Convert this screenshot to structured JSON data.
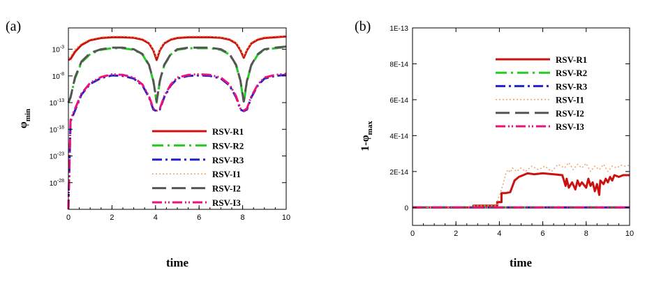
{
  "chart_data": [
    {
      "type": "line",
      "panel_label": "(a)",
      "xlabel": "time",
      "ylabel_main": "φ",
      "ylabel_sub": "min",
      "yscale": "log",
      "xlim": [
        0,
        10
      ],
      "ylim_exp": [
        -33,
        1
      ],
      "xticks": [
        0,
        2,
        4,
        6,
        8,
        10
      ],
      "xtick_labels": [
        "0",
        "2",
        "4",
        "6",
        "8",
        "10"
      ],
      "yticks_exp": [
        -28,
        -23,
        -18,
        -13,
        -8,
        -3
      ],
      "ytick_base": "10",
      "ytick_exps": [
        "-28",
        "-23",
        "-18",
        "-13",
        "-8",
        "-3"
      ],
      "legend": [
        "RSV-R1",
        "RSV-R2",
        "RSV-R3",
        "RSV-I1",
        "RSV-I2",
        "RSV-I3"
      ],
      "series": [
        {
          "name": "RSV-R1",
          "color": "#cc1111",
          "dash": "",
          "width": 3,
          "x": [
            0,
            0.1,
            0.3,
            0.6,
            1.0,
            1.5,
            2.0,
            2.5,
            3.0,
            3.4,
            3.7,
            3.9,
            4.05,
            4.2,
            4.4,
            4.7,
            5.0,
            5.5,
            6.0,
            6.5,
            7.0,
            7.4,
            7.7,
            7.9,
            8.05,
            8.2,
            8.4,
            8.7,
            9.0,
            9.5,
            10.0
          ],
          "y": [
            -5.0,
            -4.8,
            -3.5,
            -2.2,
            -1.3,
            -0.9,
            -0.75,
            -0.75,
            -0.85,
            -1.2,
            -1.9,
            -3.2,
            -5.0,
            -3.2,
            -1.9,
            -1.2,
            -0.9,
            -0.75,
            -0.75,
            -0.75,
            -0.85,
            -1.2,
            -1.9,
            -3.2,
            -4.6,
            -3.2,
            -1.9,
            -1.2,
            -0.9,
            -0.75,
            -0.6
          ]
        },
        {
          "name": "RSV-R2",
          "color": "#22cc22",
          "dash": "16,6,3,6",
          "width": 3,
          "x": [
            0,
            0.1,
            0.3,
            0.6,
            1.0,
            1.5,
            2.0,
            2.5,
            3.0,
            3.4,
            3.7,
            3.9,
            4.05,
            4.2,
            4.4,
            4.7,
            5.0,
            5.5,
            6.0,
            6.5,
            7.0,
            7.4,
            7.7,
            7.9,
            8.05,
            8.2,
            8.4,
            8.7,
            9.0,
            9.5,
            10.0
          ],
          "y": [
            -13,
            -12,
            -8.5,
            -5.5,
            -3.9,
            -3.1,
            -2.8,
            -2.8,
            -3.1,
            -4.0,
            -6.0,
            -9.0,
            -13.0,
            -9.0,
            -6.0,
            -4.0,
            -3.1,
            -2.8,
            -2.8,
            -2.8,
            -3.1,
            -4.0,
            -6.0,
            -9.0,
            -13.0,
            -9.0,
            -6.0,
            -4.0,
            -3.1,
            -2.8,
            -2.6
          ]
        },
        {
          "name": "RSV-R3",
          "color": "#2222cc",
          "dash": "14,5,3,5",
          "width": 3,
          "x": [
            0,
            0.1,
            0.3,
            0.6,
            1.0,
            1.5,
            2.0,
            2.5,
            3.0,
            3.4,
            3.7,
            3.9,
            4.05,
            4.2,
            4.4,
            4.7,
            5.0,
            5.5,
            6.0,
            6.5,
            7.0,
            7.4,
            7.7,
            7.9,
            8.05,
            8.2,
            8.4,
            8.7,
            9.0,
            9.5,
            10.0
          ],
          "y": [
            -33,
            -16.5,
            -14.5,
            -11.5,
            -9.5,
            -8.4,
            -7.9,
            -8.0,
            -8.5,
            -9.8,
            -12.0,
            -14.3,
            -14.6,
            -14.3,
            -12.0,
            -9.8,
            -8.5,
            -8.0,
            -7.9,
            -8.0,
            -8.5,
            -9.8,
            -12.0,
            -14.3,
            -14.6,
            -14.3,
            -12.0,
            -9.8,
            -8.5,
            -8.0,
            -7.8
          ]
        },
        {
          "name": "RSV-I1",
          "color": "#f0a060",
          "dash": "2,3",
          "width": 1.5,
          "x": [
            0,
            0.1,
            0.3,
            0.6,
            1.0,
            1.5,
            2.0,
            2.5,
            3.0,
            3.4,
            3.7,
            3.9,
            4.05,
            4.2,
            4.4,
            4.7,
            5.0,
            5.5,
            6.0,
            6.5,
            7.0,
            7.4,
            7.7,
            7.9,
            8.05,
            8.2,
            8.4,
            8.7,
            9.0,
            9.5,
            10.0
          ],
          "y": [
            -4.6,
            -4.3,
            -3.0,
            -1.9,
            -1.1,
            -0.7,
            -0.55,
            -0.55,
            -0.7,
            -1.0,
            -1.7,
            -3.0,
            -4.6,
            -3.0,
            -1.7,
            -1.0,
            -0.7,
            -0.55,
            -0.55,
            -0.55,
            -0.7,
            -1.0,
            -1.7,
            -3.0,
            -4.3,
            -3.0,
            -1.7,
            -1.0,
            -0.7,
            -0.55,
            -0.45
          ]
        },
        {
          "name": "RSV-I2",
          "color": "#555555",
          "dash": "20,8",
          "width": 3,
          "x": [
            0,
            0.1,
            0.3,
            0.6,
            1.0,
            1.5,
            2.0,
            2.5,
            3.0,
            3.4,
            3.7,
            3.9,
            4.05,
            4.2,
            4.4,
            4.7,
            5.0,
            5.5,
            6.0,
            6.5,
            7.0,
            7.4,
            7.7,
            7.9,
            8.05,
            8.2,
            8.4,
            8.7,
            9.0,
            9.5,
            10.0
          ],
          "y": [
            -13,
            -12,
            -8.3,
            -5.3,
            -3.7,
            -3.0,
            -2.7,
            -2.7,
            -3.0,
            -3.9,
            -5.9,
            -8.9,
            -12.8,
            -8.9,
            -5.9,
            -3.9,
            -3.0,
            -2.7,
            -2.7,
            -2.7,
            -3.0,
            -3.9,
            -5.9,
            -8.9,
            -12.8,
            -8.9,
            -5.9,
            -3.9,
            -3.0,
            -2.7,
            -2.5
          ]
        },
        {
          "name": "RSV-I3",
          "color": "#ee1177",
          "dash": "14,4,2,3,2,4",
          "width": 3,
          "x": [
            0,
            0.1,
            0.3,
            0.6,
            1.0,
            1.5,
            2.0,
            2.5,
            3.0,
            3.4,
            3.7,
            3.9,
            4.05,
            4.2,
            4.4,
            4.7,
            5.0,
            5.5,
            6.0,
            6.5,
            7.0,
            7.4,
            7.7,
            7.9,
            8.05,
            8.2,
            8.4,
            8.7,
            9.0,
            9.5,
            10.0
          ],
          "y": [
            -33,
            -16.2,
            -14.2,
            -11.3,
            -9.3,
            -8.2,
            -7.7,
            -7.8,
            -8.3,
            -9.6,
            -11.8,
            -14.1,
            -14.5,
            -14.1,
            -11.8,
            -9.6,
            -8.3,
            -7.8,
            -7.7,
            -7.8,
            -8.3,
            -9.6,
            -11.8,
            -14.1,
            -14.5,
            -14.1,
            -11.8,
            -9.6,
            -8.3,
            -7.8,
            -7.6
          ]
        }
      ]
    },
    {
      "type": "line",
      "panel_label": "(b)",
      "xlabel": "time",
      "ylabel_main": "1-φ",
      "ylabel_sub": "max",
      "xlim": [
        0,
        10
      ],
      "ylim": [
        -1e-14,
        1e-13
      ],
      "xticks": [
        0,
        2,
        4,
        6,
        8,
        10
      ],
      "xtick_labels": [
        "0",
        "2",
        "4",
        "6",
        "8",
        "10"
      ],
      "yticks": [
        0,
        2e-14,
        4e-14,
        6e-14,
        8e-14,
        1e-13
      ],
      "ytick_labels": [
        "0",
        "2E-14",
        "4E-14",
        "6E-14",
        "8E-14",
        "1E-13"
      ],
      "legend": [
        "RSV-R1",
        "RSV-R2",
        "RSV-R3",
        "RSV-I1",
        "RSV-I2",
        "RSV-I3"
      ],
      "series": [
        {
          "name": "RSV-R1",
          "color": "#cc1111",
          "dash": "",
          "width": 3,
          "x": [
            0,
            2.8,
            2.8,
            3.9,
            3.9,
            4.1,
            4.1,
            4.3,
            4.5,
            4.7,
            4.9,
            5.1,
            5.3,
            5.6,
            6.0,
            6.5,
            6.9,
            7.05,
            7.1,
            7.2,
            7.35,
            7.5,
            7.6,
            7.7,
            7.8,
            8.0,
            8.1,
            8.2,
            8.3,
            8.4,
            8.5,
            8.6,
            8.65,
            8.8,
            8.9,
            9.0,
            9.1,
            9.2,
            9.3,
            9.5,
            9.7,
            10.0
          ],
          "y": [
            0,
            0,
            1e-15,
            1e-15,
            3e-15,
            3e-15,
            8e-15,
            8e-15,
            8.5e-15,
            1.5e-14,
            1.7e-14,
            1.8e-14,
            1.9e-14,
            1.85e-14,
            1.9e-14,
            1.85e-14,
            1.8e-14,
            1.2e-14,
            1.6e-14,
            1.1e-14,
            1.4e-14,
            1e-14,
            1.5e-14,
            1.2e-14,
            1.4e-14,
            1.1e-14,
            1.6e-14,
            1.2e-14,
            1.4e-14,
            9e-15,
            1.3e-14,
            7e-15,
            1.5e-14,
            1.3e-14,
            1.6e-14,
            1.4e-14,
            1.7e-14,
            1.5e-14,
            1.8e-14,
            1.7e-14,
            1.8e-14,
            1.8e-14
          ]
        },
        {
          "name": "RSV-R2",
          "color": "#22cc22",
          "dash": "16,6,3,6",
          "width": 3,
          "x": [
            0,
            10
          ],
          "y": [
            0,
            0
          ]
        },
        {
          "name": "RSV-R3",
          "color": "#2222cc",
          "dash": "14,5,3,5",
          "width": 3,
          "x": [
            0,
            10
          ],
          "y": [
            0,
            0
          ]
        },
        {
          "name": "RSV-I1",
          "color": "#f0a060",
          "dash": "2,3",
          "width": 1.5,
          "x": [
            0,
            2.8,
            2.8,
            3.9,
            3.9,
            4.15,
            4.3,
            4.4,
            4.5,
            4.6,
            4.8,
            5.0,
            5.2,
            5.5,
            5.8,
            6.1,
            6.4,
            6.7,
            7.0,
            7.2,
            7.4,
            7.6,
            7.8,
            8.0,
            8.2,
            8.4,
            8.6,
            8.8,
            9.0,
            9.2,
            9.4,
            9.6,
            9.8,
            10.0
          ],
          "y": [
            0,
            0,
            1e-15,
            1e-15,
            3e-15,
            1.2e-14,
            1.9e-14,
            2.1e-14,
            1.95e-14,
            2.2e-14,
            2e-14,
            2.2e-14,
            2e-14,
            2.3e-14,
            2.1e-14,
            2.3e-14,
            2e-14,
            2.4e-14,
            2.2e-14,
            2.5e-14,
            2.1e-14,
            2.4e-14,
            2.2e-14,
            2.45e-14,
            2e-14,
            2.3e-14,
            2.1e-14,
            2.4e-14,
            2e-14,
            2.3e-14,
            2.2e-14,
            2.35e-14,
            2.3e-14,
            2.35e-14
          ]
        },
        {
          "name": "RSV-I2",
          "color": "#555555",
          "dash": "20,8",
          "width": 3,
          "x": [
            0,
            10
          ],
          "y": [
            0,
            0
          ]
        },
        {
          "name": "RSV-I3",
          "color": "#ee1177",
          "dash": "14,4,2,3,2,4",
          "width": 3,
          "x": [
            0,
            10
          ],
          "y": [
            0,
            0
          ]
        }
      ]
    }
  ]
}
